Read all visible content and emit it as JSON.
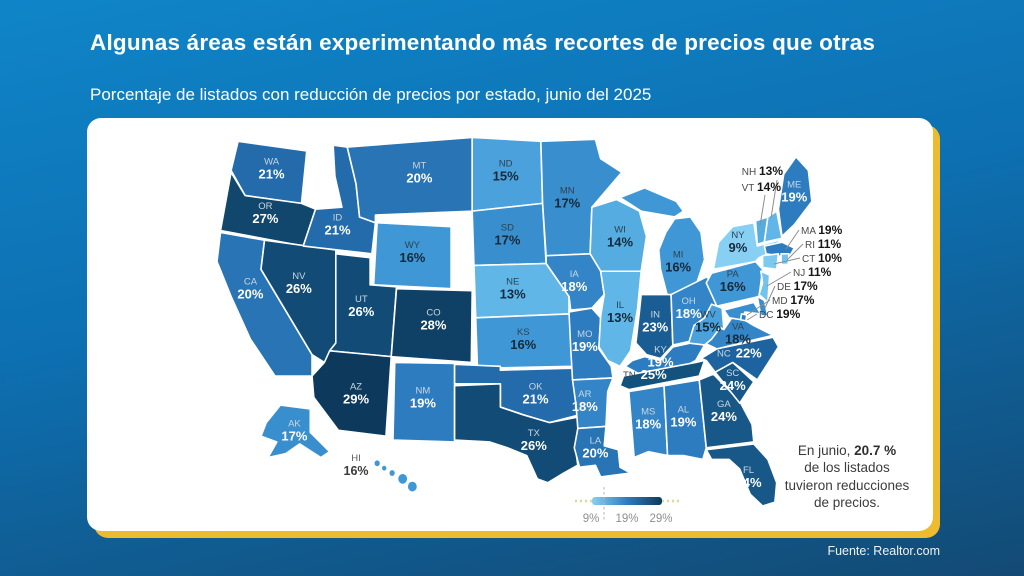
{
  "header": {
    "title": "Algunas áreas están experimentando más recortes de precios que otras",
    "subtitle": "Porcentaje de listados con reducción de precios por estado, junio del 2025"
  },
  "footer": {
    "source": "Fuente: Realtor.com"
  },
  "annotation": {
    "line1_prefix": "En junio, ",
    "line1_bold": "20.7 %",
    "line2": "de los listados",
    "line3": "tuvieron reducciones",
    "line4": "de precios."
  },
  "legend": {
    "ticks": [
      "9%",
      "19%",
      "29%"
    ]
  },
  "colors": {
    "background_top": "#0f85c8",
    "background_bottom": "#134a74",
    "card_shadow_yellow": "#eebb2e",
    "label_on_dark": "#ffffff",
    "label_on_light": "#14293a",
    "code_on_dark": "#c9d6e2",
    "code_on_light": "#2c4354",
    "scale": [
      {
        "value": 9,
        "color": "#87d0f3"
      },
      {
        "value": 13,
        "color": "#5fb6e7"
      },
      {
        "value": 16,
        "color": "#3f97d5"
      },
      {
        "value": 19,
        "color": "#2e7cc0"
      },
      {
        "value": 22,
        "color": "#1d63a0"
      },
      {
        "value": 25,
        "color": "#14527e"
      },
      {
        "value": 29,
        "color": "#0d3a5c"
      }
    ]
  },
  "chart_data": {
    "type": "choropleth",
    "geography": "Estados Unidos (por estado)",
    "metric": "Porcentaje de listados con reducción de precios",
    "period": "junio del 2025",
    "unit": "%",
    "national_average": 20.7,
    "legend_range": [
      9,
      29
    ],
    "states": [
      {
        "code": "WA",
        "value": 21
      },
      {
        "code": "OR",
        "value": 27
      },
      {
        "code": "CA",
        "value": 20
      },
      {
        "code": "NV",
        "value": 26
      },
      {
        "code": "ID",
        "value": 21
      },
      {
        "code": "MT",
        "value": 20
      },
      {
        "code": "WY",
        "value": 16
      },
      {
        "code": "UT",
        "value": 26
      },
      {
        "code": "CO",
        "value": 28
      },
      {
        "code": "AZ",
        "value": 29
      },
      {
        "code": "NM",
        "value": 19
      },
      {
        "code": "ND",
        "value": 15
      },
      {
        "code": "SD",
        "value": 17
      },
      {
        "code": "NE",
        "value": 13
      },
      {
        "code": "KS",
        "value": 16
      },
      {
        "code": "OK",
        "value": 21
      },
      {
        "code": "TX",
        "value": 26
      },
      {
        "code": "MN",
        "value": 17
      },
      {
        "code": "IA",
        "value": 18
      },
      {
        "code": "MO",
        "value": 19
      },
      {
        "code": "AR",
        "value": 18
      },
      {
        "code": "LA",
        "value": 20
      },
      {
        "code": "WI",
        "value": 14
      },
      {
        "code": "IL",
        "value": 13
      },
      {
        "code": "MS",
        "value": 18
      },
      {
        "code": "MI",
        "value": 16
      },
      {
        "code": "IN",
        "value": 23
      },
      {
        "code": "OH",
        "value": 18
      },
      {
        "code": "KY",
        "value": 19
      },
      {
        "code": "TN",
        "value": 25
      },
      {
        "code": "AL",
        "value": 19
      },
      {
        "code": "GA",
        "value": 24
      },
      {
        "code": "FL",
        "value": 24
      },
      {
        "code": "SC",
        "value": 24
      },
      {
        "code": "NC",
        "value": 22
      },
      {
        "code": "VA",
        "value": 18
      },
      {
        "code": "WV",
        "value": 15
      },
      {
        "code": "PA",
        "value": 16
      },
      {
        "code": "NY",
        "value": 9
      },
      {
        "code": "ME",
        "value": 19
      },
      {
        "code": "NH",
        "value": 13
      },
      {
        "code": "VT",
        "value": 14
      },
      {
        "code": "MA",
        "value": 19
      },
      {
        "code": "RI",
        "value": 11
      },
      {
        "code": "CT",
        "value": 10
      },
      {
        "code": "NJ",
        "value": 11
      },
      {
        "code": "DE",
        "value": 17
      },
      {
        "code": "MD",
        "value": 17
      },
      {
        "code": "DC",
        "value": 19
      },
      {
        "code": "AK",
        "value": 17
      },
      {
        "code": "HI",
        "value": 16
      }
    ]
  }
}
